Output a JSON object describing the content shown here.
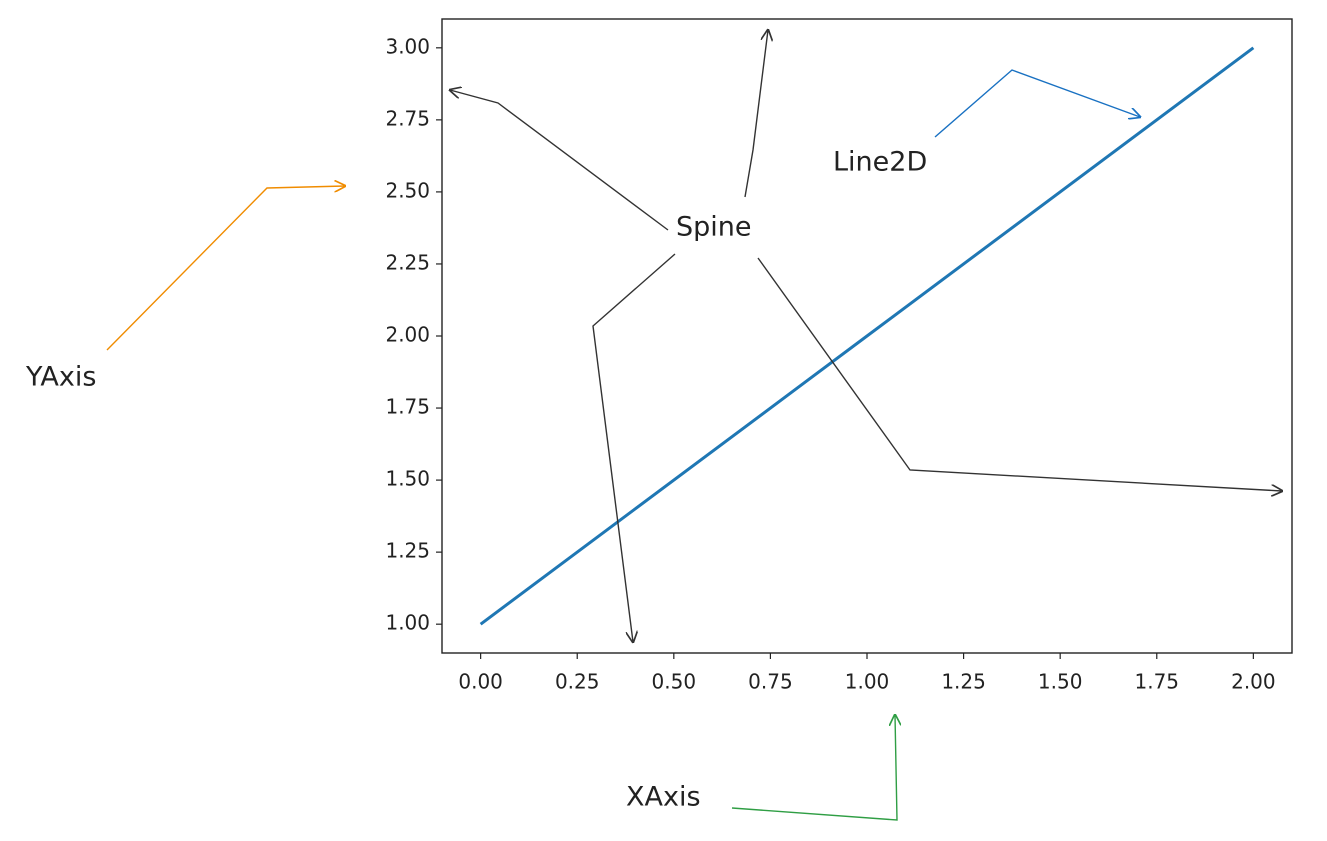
{
  "chart_data": {
    "type": "line",
    "x": [
      0,
      1,
      2
    ],
    "series": [
      {
        "color": "#1f77b4",
        "values": [
          1,
          2,
          3
        ]
      }
    ],
    "xlim": [
      -0.1,
      2.1
    ],
    "ylim": [
      0.9,
      3.1
    ],
    "xticks": [
      {
        "value": 0,
        "label": "0.00"
      },
      {
        "value": 0.25,
        "label": "0.25"
      },
      {
        "value": 0.5,
        "label": "0.50"
      },
      {
        "value": 0.75,
        "label": "0.75"
      },
      {
        "value": 1,
        "label": "1.00"
      },
      {
        "value": 1.25,
        "label": "1.25"
      },
      {
        "value": 1.5,
        "label": "1.50"
      },
      {
        "value": 1.75,
        "label": "1.75"
      },
      {
        "value": 2,
        "label": "2.00"
      }
    ],
    "yticks": [
      {
        "value": 1,
        "label": "1.00"
      },
      {
        "value": 1.25,
        "label": "1.25"
      },
      {
        "value": 1.5,
        "label": "1.50"
      },
      {
        "value": 1.75,
        "label": "1.75"
      },
      {
        "value": 2,
        "label": "2.00"
      },
      {
        "value": 2.25,
        "label": "2.25"
      },
      {
        "value": 2.5,
        "label": "2.50"
      },
      {
        "value": 2.75,
        "label": "2.75"
      },
      {
        "value": 3,
        "label": "3.00"
      }
    ],
    "grid": false,
    "annotations": [
      {
        "text": "Spine",
        "color": "#222222"
      },
      {
        "text": "Line2D",
        "color": "#1971c2"
      },
      {
        "text": "YAxis",
        "color": "#f08c00"
      },
      {
        "text": "XAxis",
        "color": "#2f9e44"
      }
    ]
  }
}
